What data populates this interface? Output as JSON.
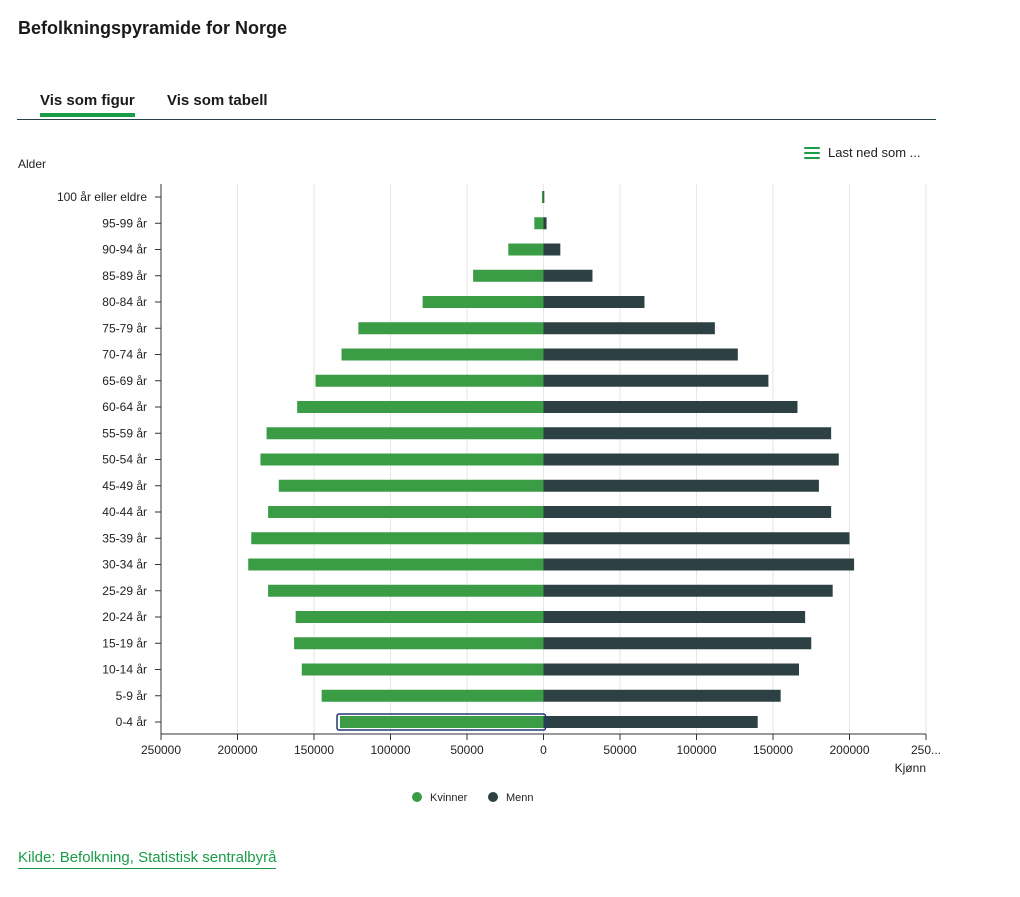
{
  "title": "Befolkningspyramide for Norge",
  "tabs": [
    {
      "label": "Vis som figur",
      "active": true
    },
    {
      "label": "Vis som tabell",
      "active": false
    }
  ],
  "download": {
    "label": "Last ned som ...",
    "icon": "hamburger-menu-icon"
  },
  "source_link": "Kilde: Befolkning, Statistisk sentralbyrå",
  "colors": {
    "women": "#3a9c45",
    "men": "#2d4145",
    "accent": "#1a9d49"
  },
  "chart_data": {
    "type": "bar",
    "orientation": "horizontal",
    "ylabel": "Alder",
    "xlabel": "Kjønn",
    "xlim": [
      -250000,
      250000
    ],
    "x_ticks": [
      "250000",
      "200000",
      "150000",
      "100000",
      "50000",
      "0",
      "50000",
      "100000",
      "150000",
      "200000",
      "250..."
    ],
    "categories": [
      "100 år eller eldre",
      "95-99 år",
      "90-94 år",
      "85-89 år",
      "80-84 år",
      "75-79 år",
      "70-74 år",
      "65-69 år",
      "60-64 år",
      "55-59 år",
      "50-54 år",
      "45-49 år",
      "40-44 år",
      "35-39 år",
      "30-34 år",
      "25-29 år",
      "20-24 år",
      "15-19 år",
      "10-14 år",
      "5-9 år",
      "0-4 år"
    ],
    "series": [
      {
        "name": "Kvinner",
        "side": "left",
        "values": [
          1000,
          6000,
          23000,
          46000,
          79000,
          121000,
          132000,
          149000,
          161000,
          181000,
          185000,
          173000,
          180000,
          191000,
          193000,
          180000,
          162000,
          163000,
          158000,
          145000,
          133000
        ]
      },
      {
        "name": "Menn",
        "side": "right",
        "values": [
          200,
          2000,
          11000,
          32000,
          66000,
          112000,
          127000,
          147000,
          166000,
          188000,
          193000,
          180000,
          188000,
          200000,
          203000,
          189000,
          171000,
          175000,
          167000,
          155000,
          140000
        ]
      }
    ],
    "legend": {
      "position": "bottom",
      "items": [
        "Kvinner",
        "Menn"
      ]
    },
    "grid": true,
    "highlighted_category": "0-4 år"
  }
}
